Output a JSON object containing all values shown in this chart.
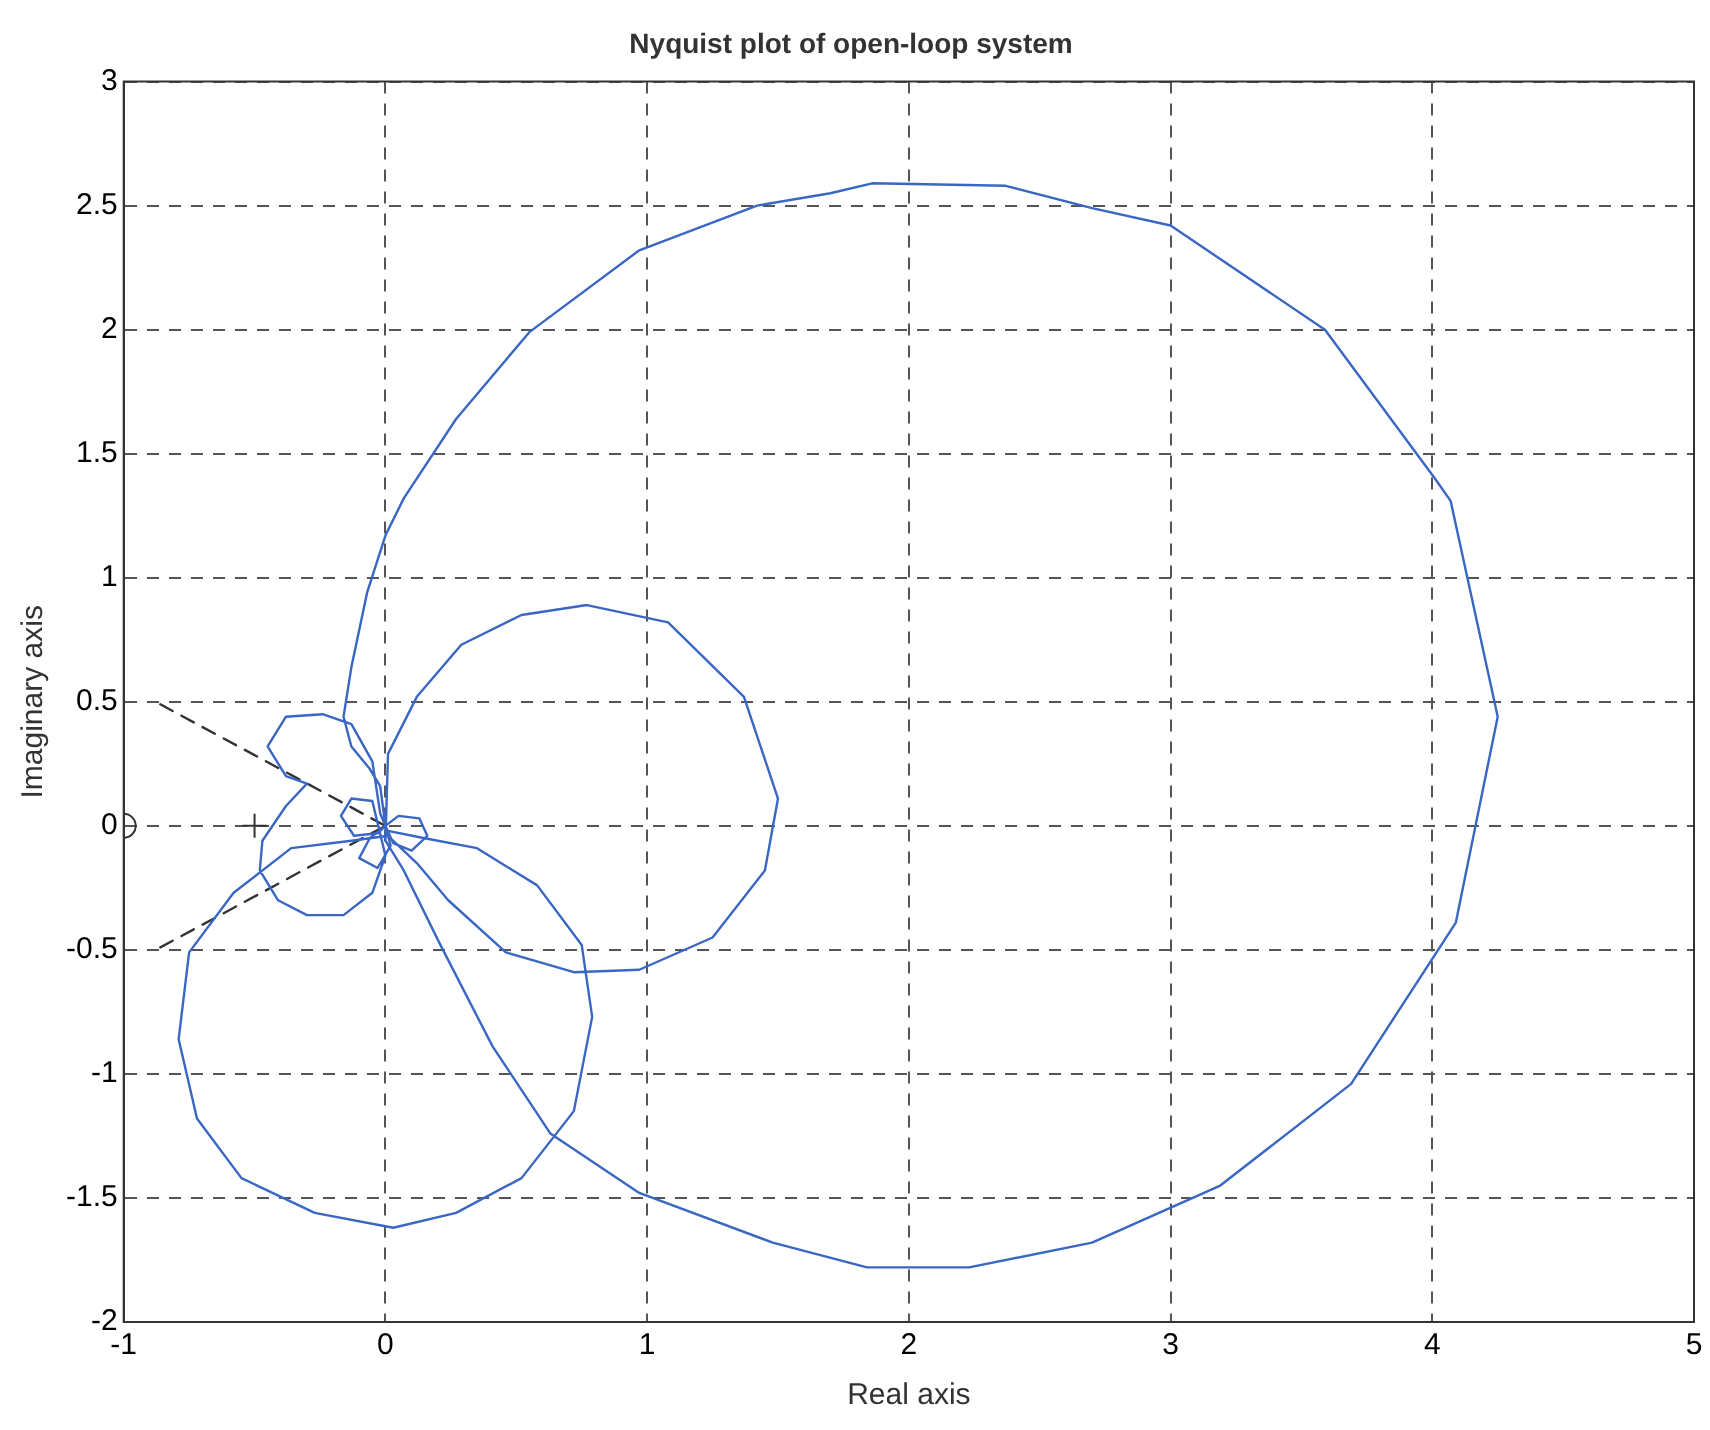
{
  "chart_data": {
    "type": "line",
    "title": "Nyquist plot of open-loop system",
    "xlabel": "Real axis",
    "ylabel": "Imaginary axis",
    "xlim": [
      -1,
      5
    ],
    "ylim": [
      -2,
      3
    ],
    "xticks": [
      -1,
      0,
      1,
      2,
      3,
      4,
      5
    ],
    "yticks": [
      -2,
      -1.5,
      -1,
      -0.5,
      0,
      0.5,
      1,
      1.5,
      2,
      2.5,
      3
    ],
    "grid": true,
    "legend": false,
    "series": [
      {
        "type": "line",
        "color": "#3a66c4",
        "x": [
          0,
          -0.02,
          -0.05,
          -0.13,
          -0.24,
          -0.38,
          -0.45,
          -0.38,
          -0.3,
          -0.38,
          -0.47,
          -0.48,
          -0.41,
          -0.3,
          -0.16,
          -0.05,
          0,
          -0.05,
          -0.13,
          -0.17,
          -0.12,
          -0.03,
          0,
          0.05,
          0.13,
          0.16,
          0.1,
          0.03,
          0,
          0.02,
          -0.03,
          -0.1,
          -0.06,
          0,
          -0.02,
          -0.06,
          -0.13,
          -0.16,
          -0.13,
          -0.07,
          0,
          0.07,
          0.27,
          0.55,
          0.97,
          1.42,
          1.7,
          1.86,
          2.37,
          2.7,
          3.0,
          3.59,
          4.01,
          4.07,
          4.25,
          4.09,
          3.69,
          3.19,
          2.7,
          2.23,
          1.84,
          1.48,
          0.97,
          0.63,
          0.41,
          0.21,
          0.07,
          0,
          0.01,
          0.12,
          0.29,
          0.52,
          0.77,
          1.08,
          1.37,
          1.5,
          1.45,
          1.25,
          0.97,
          0.72,
          0.46,
          0.24,
          0.12,
          0.01,
          -0.13,
          -0.36,
          -0.58,
          -0.75,
          -0.79,
          -0.72,
          -0.55,
          -0.27,
          0.03,
          0.27,
          0.52,
          0.72,
          0.79,
          0.75,
          0.58,
          0.35,
          0.15,
          0.01
        ],
        "values": [
          0,
          0.05,
          0.26,
          0.41,
          0.45,
          0.44,
          0.32,
          0.2,
          0.17,
          0.08,
          -0.06,
          -0.18,
          -0.3,
          -0.36,
          -0.36,
          -0.27,
          -0.12,
          0.1,
          0.11,
          0.04,
          -0.04,
          -0.03,
          0,
          0.04,
          0.03,
          -0.04,
          -0.1,
          -0.07,
          0,
          -0.08,
          -0.17,
          -0.13,
          -0.05,
          0,
          0.16,
          0.23,
          0.32,
          0.44,
          0.64,
          0.94,
          1.17,
          1.32,
          1.64,
          1.99,
          2.32,
          2.5,
          2.55,
          2.59,
          2.58,
          2.49,
          2.42,
          2.0,
          1.4,
          1.31,
          0.44,
          -0.39,
          -1.04,
          -1.45,
          -1.68,
          -1.78,
          -1.78,
          -1.68,
          -1.48,
          -1.24,
          -0.89,
          -0.48,
          -0.18,
          -0.06,
          0.29,
          0.52,
          0.73,
          0.85,
          0.89,
          0.82,
          0.52,
          0.11,
          -0.18,
          -0.45,
          -0.58,
          -0.59,
          -0.51,
          -0.3,
          -0.15,
          -0.04,
          -0.06,
          -0.09,
          -0.27,
          -0.51,
          -0.86,
          -1.18,
          -1.42,
          -1.56,
          -1.62,
          -1.56,
          -1.42,
          -1.15,
          -0.77,
          -0.48,
          -0.24,
          -0.09,
          -0.05,
          -0.02
        ]
      },
      {
        "type": "line",
        "color": "#333333",
        "line_style": "dashed",
        "x": [
          -0.86,
          0
        ],
        "values": [
          0.49,
          0
        ]
      },
      {
        "type": "line",
        "color": "#333333",
        "line_style": "dashed",
        "x": [
          -0.86,
          0
        ],
        "values": [
          -0.49,
          0
        ]
      },
      {
        "type": "scatter",
        "color": "#333333",
        "marker": "circle",
        "x": [
          -1
        ],
        "values": [
          0
        ]
      },
      {
        "type": "scatter",
        "color": "#333333",
        "marker": "cross",
        "x": [
          -0.5
        ],
        "values": [
          0
        ]
      }
    ]
  }
}
